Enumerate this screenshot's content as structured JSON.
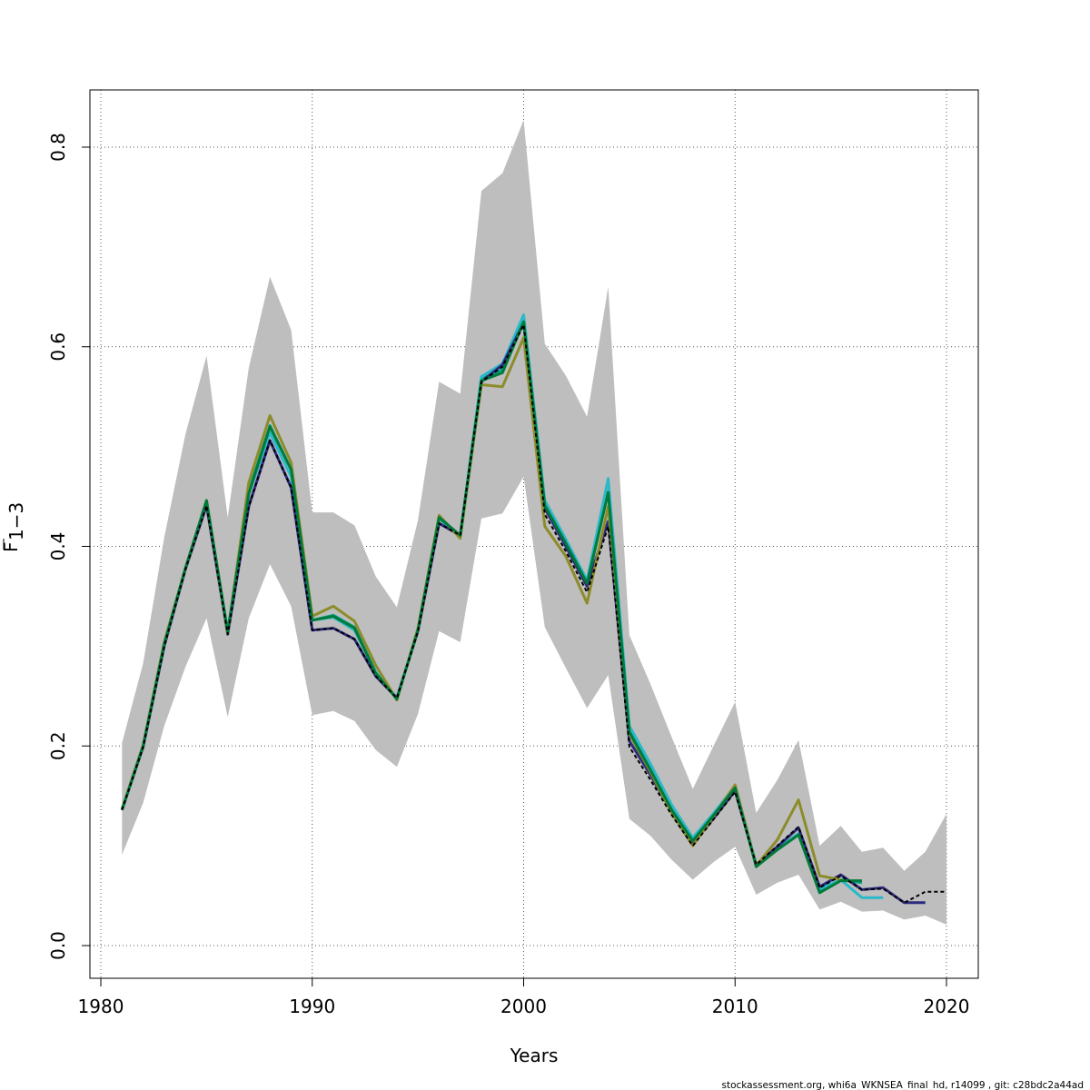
{
  "chart_data": {
    "type": "line",
    "title": "",
    "xlabel": "Years",
    "ylabel": "F̄1−3",
    "ylabel_main": "F",
    "ylabel_sub": "1−3",
    "xlim": [
      1980,
      2020
    ],
    "ylim": [
      0,
      0.85
    ],
    "x_ticks": [
      1980,
      1990,
      2000,
      2010,
      2020
    ],
    "y_ticks": [
      0.0,
      0.2,
      0.4,
      0.6,
      0.8
    ],
    "x_tick_labels": [
      "1980",
      "1990",
      "2000",
      "2010",
      "2020"
    ],
    "y_tick_labels": [
      "0.0",
      "0.2",
      "0.4",
      "0.6",
      "0.8"
    ],
    "grid": true,
    "legend": "none",
    "footer": "stockassessment.org, whi6a_WKNSEA_final_hd, r14099 , git: c28bdc2a44ad",
    "band": {
      "color": "#bebebe",
      "x": [
        1981,
        1982,
        1983,
        1984,
        1985,
        1986,
        1987,
        1988,
        1989,
        1990,
        1991,
        1992,
        1993,
        1994,
        1995,
        1996,
        1997,
        1998,
        1999,
        2000,
        2001,
        2002,
        2003,
        2004,
        2005,
        2006,
        2007,
        2008,
        2009,
        2010,
        2011,
        2012,
        2013,
        2014,
        2015,
        2016,
        2017,
        2018,
        2019,
        2020
      ],
      "upper": [
        0.203,
        0.283,
        0.409,
        0.512,
        0.591,
        0.429,
        0.579,
        0.67,
        0.617,
        0.434,
        0.434,
        0.421,
        0.37,
        0.339,
        0.426,
        0.565,
        0.553,
        0.756,
        0.774,
        0.827,
        0.603,
        0.571,
        0.53,
        0.66,
        0.311,
        0.262,
        0.209,
        0.157,
        0.201,
        0.244,
        0.133,
        0.166,
        0.206,
        0.1,
        0.12,
        0.094,
        0.098,
        0.075,
        0.094,
        0.132
      ],
      "lower": [
        0.091,
        0.143,
        0.22,
        0.279,
        0.328,
        0.229,
        0.328,
        0.382,
        0.34,
        0.231,
        0.235,
        0.225,
        0.196,
        0.179,
        0.232,
        0.315,
        0.304,
        0.428,
        0.433,
        0.47,
        0.319,
        0.278,
        0.238,
        0.271,
        0.127,
        0.11,
        0.086,
        0.066,
        0.084,
        0.099,
        0.051,
        0.063,
        0.071,
        0.036,
        0.044,
        0.034,
        0.035,
        0.026,
        0.03,
        0.021
      ]
    },
    "series": [
      {
        "color": "#00a38c",
        "width": 3,
        "dash": "",
        "x": [
          1981,
          1982,
          1983,
          1984,
          1985,
          1986,
          1987,
          1988,
          1989,
          1990,
          1991,
          1992,
          1993,
          1994,
          1995,
          1996,
          1997,
          1998,
          1999,
          2000,
          2001,
          2002,
          2003,
          2004,
          2005,
          2006,
          2007,
          2008,
          2009,
          2010,
          2011,
          2012,
          2013,
          2014,
          2015,
          2016
        ],
        "values": [
          0.136,
          0.201,
          0.303,
          0.378,
          0.445,
          0.315,
          0.455,
          0.521,
          0.477,
          0.326,
          0.331,
          0.319,
          0.274,
          0.248,
          0.316,
          0.428,
          0.41,
          0.568,
          0.577,
          0.627,
          0.44,
          0.404,
          0.362,
          0.455,
          0.215,
          0.178,
          0.137,
          0.104,
          0.131,
          0.159,
          0.081,
          0.096,
          0.112,
          0.055,
          0.066,
          0.063
        ]
      },
      {
        "color": "#2ab9c9",
        "width": 3,
        "dash": "",
        "x": [
          1981,
          1982,
          1983,
          1984,
          1985,
          1986,
          1987,
          1988,
          1989,
          1990,
          1991,
          1992,
          1993,
          1994,
          1995,
          1996,
          1997,
          1998,
          1999,
          2000,
          2001,
          2002,
          2003,
          2004,
          2005,
          2006,
          2007,
          2008,
          2009,
          2010,
          2011,
          2012,
          2013,
          2014,
          2015,
          2016,
          2017
        ],
        "values": [
          0.136,
          0.2,
          0.302,
          0.377,
          0.444,
          0.314,
          0.452,
          0.514,
          0.47,
          0.326,
          0.329,
          0.316,
          0.274,
          0.248,
          0.316,
          0.429,
          0.41,
          0.57,
          0.583,
          0.632,
          0.446,
          0.407,
          0.366,
          0.468,
          0.22,
          0.182,
          0.141,
          0.108,
          0.133,
          0.16,
          0.081,
          0.097,
          0.112,
          0.057,
          0.066,
          0.048,
          0.048
        ]
      },
      {
        "color": "#2d2b7c",
        "width": 3,
        "dash": "",
        "x": [
          1981,
          1982,
          1983,
          1984,
          1985,
          1986,
          1987,
          1988,
          1989,
          1990,
          1991,
          1992,
          1993,
          1994,
          1995,
          1996,
          1997,
          1998,
          1999,
          2000,
          2001,
          2002,
          2003,
          2004,
          2005,
          2006,
          2007,
          2008,
          2009,
          2010,
          2011,
          2012,
          2013,
          2014,
          2015,
          2016,
          2017,
          2018,
          2019
        ],
        "values": [
          0.136,
          0.199,
          0.3,
          0.377,
          0.441,
          0.312,
          0.44,
          0.506,
          0.459,
          0.316,
          0.318,
          0.307,
          0.27,
          0.248,
          0.315,
          0.423,
          0.411,
          0.565,
          0.582,
          0.624,
          0.438,
          0.4,
          0.36,
          0.425,
          0.205,
          0.171,
          0.134,
          0.102,
          0.128,
          0.155,
          0.081,
          0.099,
          0.118,
          0.059,
          0.071,
          0.056,
          0.058,
          0.043,
          0.043
        ]
      },
      {
        "color": "#8c8c2a",
        "width": 3,
        "dash": "",
        "x": [
          1981,
          1982,
          1983,
          1984,
          1985,
          1986,
          1987,
          1988,
          1989,
          1990,
          1991,
          1992,
          1993,
          1994,
          1995,
          1996,
          1997,
          1998,
          1999,
          2000,
          2001,
          2002,
          2003,
          2004,
          2005,
          2006,
          2007,
          2008,
          2009,
          2010,
          2011,
          2012,
          2013,
          2014,
          2015
        ],
        "values": [
          0.137,
          0.201,
          0.304,
          0.378,
          0.446,
          0.313,
          0.464,
          0.531,
          0.484,
          0.33,
          0.34,
          0.325,
          0.281,
          0.246,
          0.318,
          0.431,
          0.408,
          0.562,
          0.56,
          0.609,
          0.42,
          0.39,
          0.343,
          0.44,
          0.212,
          0.174,
          0.133,
          0.1,
          0.13,
          0.161,
          0.08,
          0.106,
          0.146,
          0.07,
          0.066
        ]
      },
      {
        "color": "#007a3a",
        "width": 3,
        "dash": "",
        "x": [
          1981,
          1982,
          1983,
          1984,
          1985,
          1986,
          1987,
          1988,
          1989,
          1990,
          1991,
          1992,
          1993,
          1994,
          1995,
          1996,
          1997,
          1998,
          1999,
          2000,
          2001,
          2002,
          2003,
          2004,
          2005,
          2006,
          2007,
          2008,
          2009,
          2010,
          2011,
          2012,
          2013,
          2014,
          2015,
          2016
        ],
        "values": [
          0.136,
          0.2,
          0.302,
          0.378,
          0.446,
          0.314,
          0.453,
          0.52,
          0.477,
          0.326,
          0.33,
          0.318,
          0.273,
          0.247,
          0.316,
          0.429,
          0.411,
          0.566,
          0.574,
          0.625,
          0.441,
          0.403,
          0.363,
          0.454,
          0.214,
          0.176,
          0.136,
          0.105,
          0.131,
          0.158,
          0.079,
          0.096,
          0.111,
          0.053,
          0.065,
          0.065
        ]
      },
      {
        "color": "#000000",
        "width": 2,
        "dash": "4,3",
        "x": [
          1981,
          1982,
          1983,
          1984,
          1985,
          1986,
          1987,
          1988,
          1989,
          1990,
          1991,
          1992,
          1993,
          1994,
          1995,
          1996,
          1997,
          1998,
          1999,
          2000,
          2001,
          2002,
          2003,
          2004,
          2005,
          2006,
          2007,
          2008,
          2009,
          2010,
          2011,
          2012,
          2013,
          2014,
          2015,
          2016,
          2017,
          2018,
          2019,
          2020
        ],
        "values": [
          0.136,
          0.199,
          0.3,
          0.377,
          0.441,
          0.312,
          0.44,
          0.506,
          0.459,
          0.316,
          0.318,
          0.307,
          0.27,
          0.248,
          0.315,
          0.423,
          0.411,
          0.565,
          0.58,
          0.622,
          0.432,
          0.395,
          0.354,
          0.42,
          0.199,
          0.166,
          0.131,
          0.1,
          0.127,
          0.154,
          0.081,
          0.1,
          0.119,
          0.058,
          0.07,
          0.056,
          0.057,
          0.043,
          0.054,
          0.054
        ]
      }
    ]
  }
}
